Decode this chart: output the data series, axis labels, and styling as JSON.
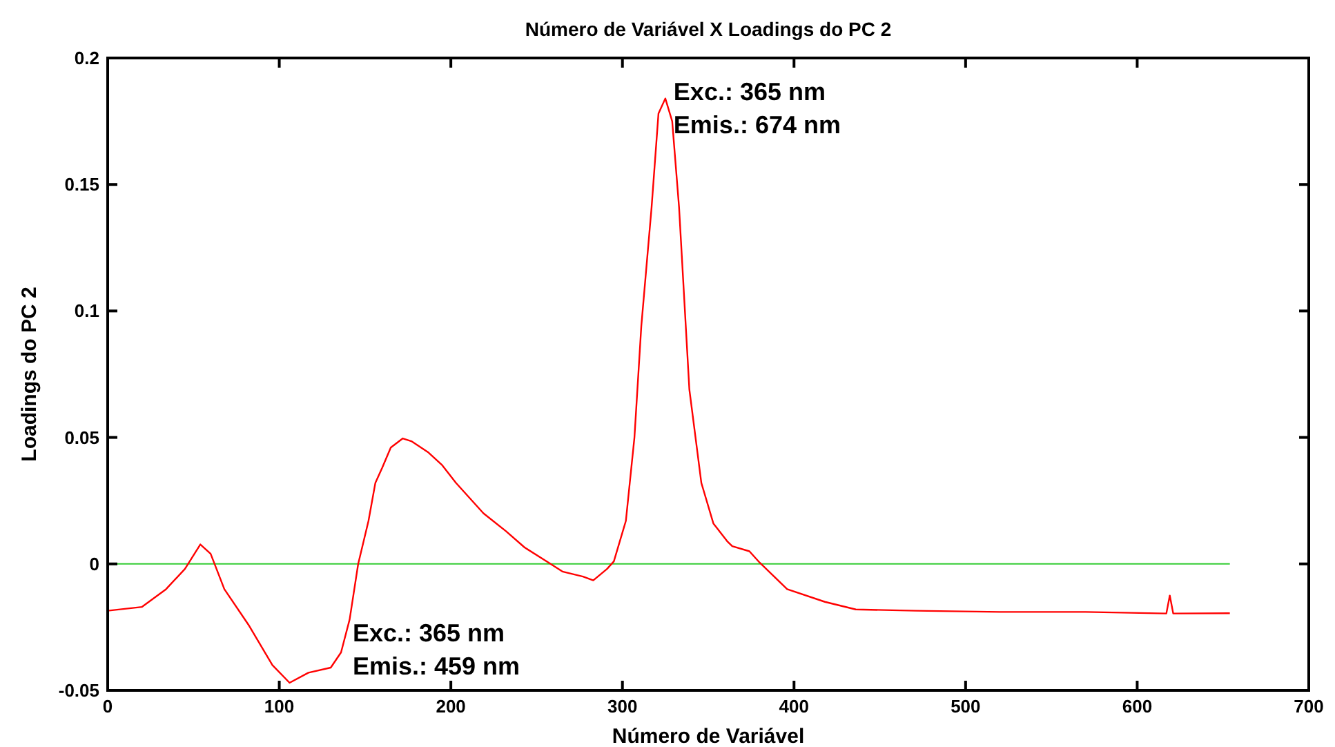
{
  "chart_data": {
    "type": "line",
    "title": "Número de Variável X Loadings do PC 2",
    "xlabel": "Número de Variável",
    "ylabel": "Loadings do PC 2",
    "xlim": [
      0,
      700
    ],
    "xticks": [
      0,
      100,
      200,
      300,
      400,
      500,
      600,
      700
    ],
    "ylim": [
      -0.05,
      0.2
    ],
    "yticks": [
      -0.05,
      0,
      0.05,
      0.1,
      0.15,
      0.2
    ],
    "grid": false,
    "marker": "none",
    "line_style": "solid",
    "ref_lines": [
      {
        "axis": "y",
        "value": 0,
        "color": "#33cc33"
      }
    ],
    "annotations": [
      {
        "text": "Exc.: 365 nm\nEmis.: 674 nm",
        "x": 325,
        "y": 0.184
      },
      {
        "text": "Exc.: 365 nm\nEmis.: 459 nm",
        "x": 138,
        "y": -0.03
      }
    ],
    "series": [
      {
        "color": "#ff0000",
        "x": [
          0,
          20,
          34,
          45,
          54,
          60,
          68,
          82,
          96,
          106,
          117,
          130,
          136,
          141,
          146,
          152,
          156,
          160,
          165,
          172,
          177,
          187,
          195,
          203,
          219,
          232,
          243,
          257,
          265,
          277,
          283,
          291,
          295,
          302,
          307,
          311,
          317,
          321,
          325,
          329,
          333,
          339,
          346,
          353,
          361,
          364,
          374,
          380,
          396,
          418,
          436,
          471,
          520,
          570,
          617,
          619,
          621,
          654
        ],
        "values": [
          -0.0185,
          -0.017,
          -0.01,
          -0.002,
          0.0077,
          0.004,
          -0.01,
          -0.024,
          -0.04,
          -0.047,
          -0.043,
          -0.041,
          -0.035,
          -0.022,
          0.0,
          0.017,
          0.032,
          0.038,
          0.046,
          0.0496,
          0.0485,
          0.044,
          0.039,
          0.032,
          0.02,
          0.013,
          0.0065,
          0.0005,
          -0.003,
          -0.005,
          -0.0065,
          -0.002,
          0.001,
          0.017,
          0.05,
          0.094,
          0.141,
          0.178,
          0.184,
          0.175,
          0.141,
          0.069,
          0.032,
          0.016,
          0.009,
          0.007,
          0.005,
          0.0005,
          -0.01,
          -0.015,
          -0.018,
          -0.0185,
          -0.019,
          -0.019,
          -0.0196,
          -0.0125,
          -0.0196,
          -0.0195
        ]
      }
    ]
  }
}
